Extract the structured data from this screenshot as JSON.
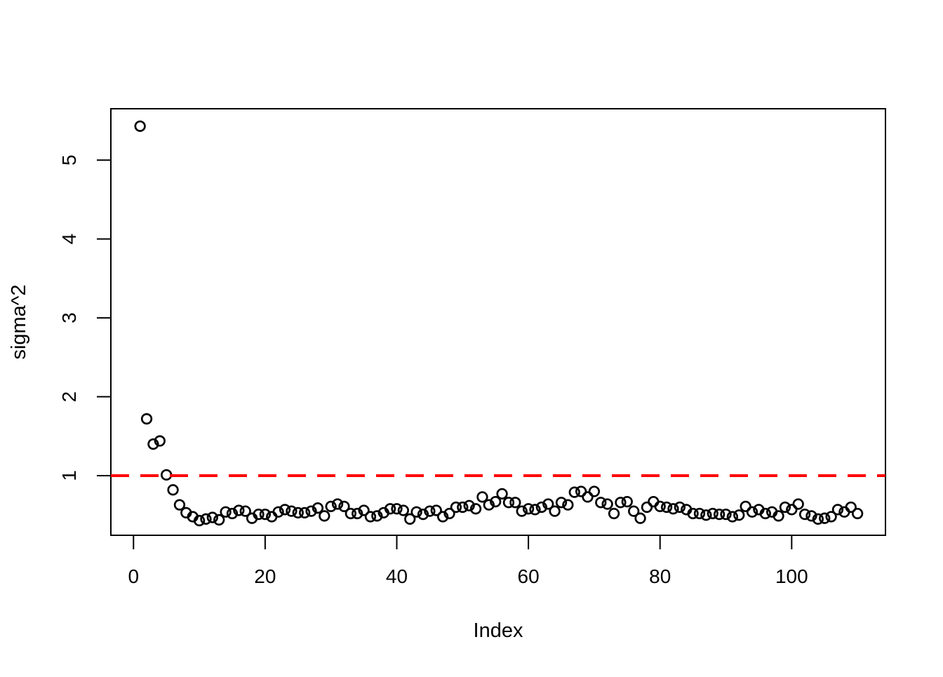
{
  "chart_data": {
    "type": "scatter",
    "title": "",
    "x_axis": {
      "label": "Index",
      "ticks": [
        0,
        20,
        40,
        60,
        80,
        100
      ],
      "tick_labels": [
        "0",
        "20",
        "40",
        "60",
        "80",
        "100"
      ],
      "range": [
        -3.44,
        114.25
      ]
    },
    "y_axis": {
      "label": "sigma^2",
      "ticks": [
        1,
        2,
        3,
        4,
        5
      ],
      "tick_labels": [
        "1",
        "2",
        "3",
        "4",
        "5"
      ],
      "range": [
        0.244,
        5.651
      ]
    },
    "grid": false,
    "legend": false,
    "point_style": {
      "shape": "open-circle",
      "color": "#000000"
    },
    "reference_line": {
      "y": 1,
      "color": "#FF0000",
      "style": "dashed"
    },
    "x": [
      1,
      2,
      3,
      4,
      5,
      6,
      7,
      8,
      9,
      10,
      11,
      12,
      13,
      14,
      15,
      16,
      17,
      18,
      19,
      20,
      21,
      22,
      23,
      24,
      25,
      26,
      27,
      28,
      29,
      30,
      31,
      32,
      33,
      34,
      35,
      36,
      37,
      38,
      39,
      40,
      41,
      42,
      43,
      44,
      45,
      46,
      47,
      48,
      49,
      50,
      51,
      52,
      53,
      54,
      55,
      56,
      57,
      58,
      59,
      60,
      61,
      62,
      63,
      64,
      65,
      66,
      67,
      68,
      69,
      70,
      71,
      72,
      73,
      74,
      75,
      76,
      77,
      78,
      79,
      80,
      81,
      82,
      83,
      84,
      85,
      86,
      87,
      88,
      89,
      90,
      91,
      92,
      93,
      94,
      95,
      96,
      97,
      98,
      99,
      100,
      101,
      102,
      103,
      104,
      105,
      106,
      107,
      108,
      109,
      110
    ],
    "values": [
      5.43,
      1.72,
      1.4,
      1.44,
      1.01,
      0.82,
      0.63,
      0.53,
      0.48,
      0.43,
      0.45,
      0.47,
      0.44,
      0.54,
      0.52,
      0.56,
      0.55,
      0.46,
      0.51,
      0.51,
      0.48,
      0.54,
      0.57,
      0.55,
      0.53,
      0.53,
      0.55,
      0.59,
      0.49,
      0.61,
      0.64,
      0.61,
      0.52,
      0.52,
      0.56,
      0.48,
      0.49,
      0.53,
      0.58,
      0.58,
      0.56,
      0.45,
      0.54,
      0.51,
      0.55,
      0.56,
      0.48,
      0.52,
      0.6,
      0.6,
      0.62,
      0.58,
      0.73,
      0.63,
      0.67,
      0.77,
      0.66,
      0.66,
      0.55,
      0.58,
      0.57,
      0.6,
      0.64,
      0.55,
      0.66,
      0.63,
      0.79,
      0.8,
      0.73,
      0.8,
      0.66,
      0.64,
      0.52,
      0.66,
      0.67,
      0.55,
      0.46,
      0.6,
      0.67,
      0.61,
      0.6,
      0.58,
      0.6,
      0.57,
      0.52,
      0.52,
      0.5,
      0.52,
      0.51,
      0.51,
      0.48,
      0.5,
      0.61,
      0.54,
      0.57,
      0.52,
      0.54,
      0.49,
      0.6,
      0.57,
      0.64,
      0.51,
      0.49,
      0.45,
      0.46,
      0.48,
      0.57,
      0.54,
      0.6,
      0.52
    ]
  },
  "colors": {
    "background": "#FFFFFF",
    "foreground": "#000000",
    "reference_line": "#FF0000"
  }
}
